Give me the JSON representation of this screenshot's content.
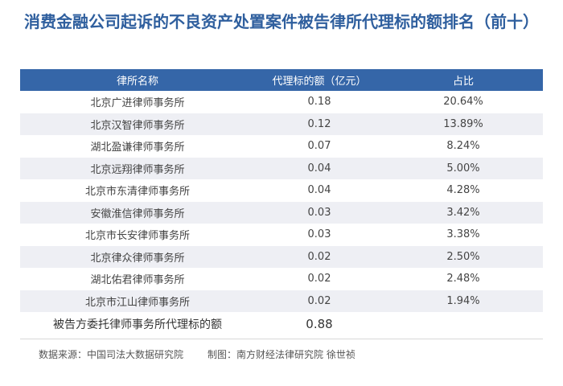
{
  "title": "消费金融公司起诉的不良资产处置案件被告律所代理标的额排名（前十）",
  "chart_data": {
    "type": "table",
    "title": "消费金融公司起诉的不良资产处置案件被告律所代理标的额排名（前十）",
    "columns": [
      "律所名称",
      "代理标的额（亿元）",
      "占比"
    ],
    "rows": [
      {
        "name": "北京广进律师事务所",
        "amount": "0.18",
        "share": "20.64%"
      },
      {
        "name": "北京汉智律师事务所",
        "amount": "0.12",
        "share": "13.89%"
      },
      {
        "name": "湖北盈谦律师事务所",
        "amount": "0.07",
        "share": "8.24%"
      },
      {
        "name": "北京远翔律师事务所",
        "amount": "0.04",
        "share": "5.00%"
      },
      {
        "name": "北京市东清律师事务所",
        "amount": "0.04",
        "share": "4.28%"
      },
      {
        "name": "安徽淮信律师事务所",
        "amount": "0.03",
        "share": "3.42%"
      },
      {
        "name": "北京市长安律师事务所",
        "amount": "0.03",
        "share": "3.38%"
      },
      {
        "name": "北京律众律师事务所",
        "amount": "0.02",
        "share": "2.50%"
      },
      {
        "name": "湖北佑君律师事务所",
        "amount": "0.02",
        "share": "2.48%"
      },
      {
        "name": "北京市江山律师事务所",
        "amount": "0.02",
        "share": "1.94%"
      }
    ],
    "total": {
      "label": "被告方委托律师事务所代理标的额",
      "amount": "0.88"
    }
  },
  "footer": {
    "source": "数据来源：中国司法大数据研究院",
    "credit": "制图：南方财经法律研究院 徐世祯"
  },
  "colors": {
    "header_bg": "#3566a8",
    "title": "#2f5f9e",
    "stripe": "#eeeff4"
  }
}
